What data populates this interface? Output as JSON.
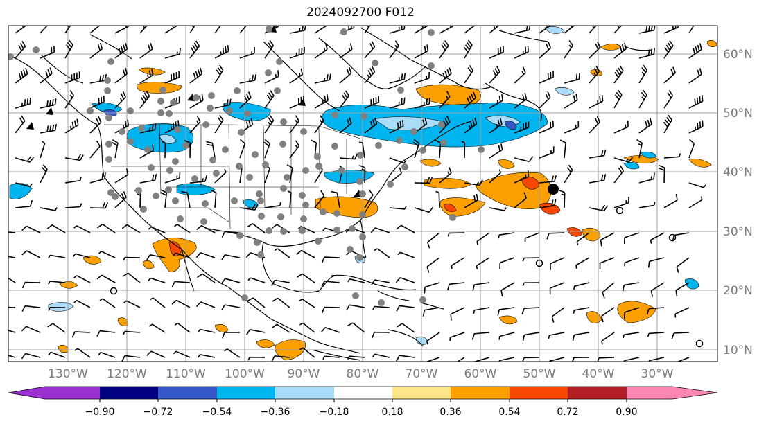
{
  "title": "2024092700 F012",
  "map": {
    "lat_labels": [
      "60°N",
      "50°N",
      "40°N",
      "30°N",
      "20°N",
      "10°N"
    ],
    "lon_labels": [
      "130°W",
      "120°W",
      "110°W",
      "100°W",
      "90°W",
      "80°W",
      "70°W",
      "60°W",
      "50°W",
      "40°W",
      "30°W"
    ],
    "grid_color": "#a0a0a0",
    "coast_color": "#000000",
    "station_dot_color": "#808080",
    "marker_color": "#000000"
  },
  "colorbar": {
    "labels": [
      "−0.90",
      "−0.72",
      "−0.54",
      "−0.36",
      "−0.18",
      "0.18",
      "0.36",
      "0.54",
      "0.72",
      "0.90"
    ],
    "colors": [
      "#9b30d0",
      "#000080",
      "#3557c8",
      "#00b4f0",
      "#a8dcf8",
      "#ffffff",
      "#fde58a",
      "#fba000",
      "#f84700",
      "#b21f24",
      "#fc86b4"
    ]
  }
}
